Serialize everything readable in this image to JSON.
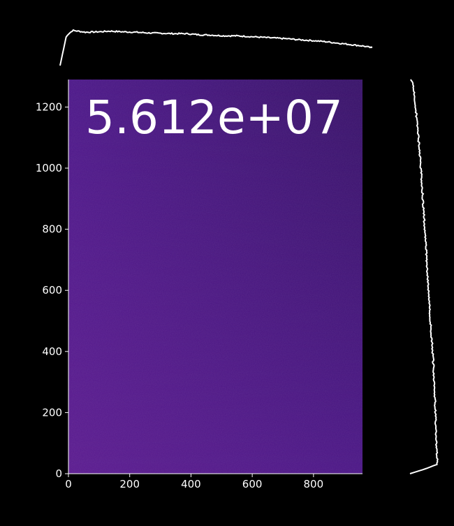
{
  "chart_data": {
    "type": "heatmap",
    "colormap": "plasma",
    "background": "#000000",
    "image": {
      "x_range": [
        0,
        960
      ],
      "y_range": [
        0,
        1290
      ],
      "colors": {
        "bottom_left": "#5a1a8f",
        "bottom_right": "#4a1585",
        "top_left": "#4b1688",
        "top_right": "#361067"
      }
    },
    "annotation": "5.612e+07",
    "x_axis": {
      "ticks": [
        0,
        200,
        400,
        600,
        800
      ],
      "tick_labels": [
        "0",
        "200",
        "400",
        "600",
        "800"
      ]
    },
    "y_axis": {
      "ticks": [
        0,
        200,
        400,
        600,
        800,
        1000,
        1200
      ],
      "tick_labels": [
        "0",
        "200",
        "400",
        "600",
        "800",
        "1000",
        "1200"
      ]
    },
    "column_profile": {
      "x": [
        0,
        20,
        40,
        80,
        120,
        160,
        200,
        240,
        280,
        320,
        360,
        400,
        440,
        480,
        520,
        560,
        600,
        640,
        680,
        720,
        760,
        800,
        840,
        880,
        920,
        960,
        990
      ],
      "values": [
        0.0,
        0.82,
        0.97,
        0.92,
        0.93,
        0.95,
        0.93,
        0.92,
        0.9,
        0.89,
        0.88,
        0.88,
        0.85,
        0.84,
        0.82,
        0.82,
        0.8,
        0.78,
        0.76,
        0.74,
        0.71,
        0.69,
        0.66,
        0.62,
        0.58,
        0.54,
        0.49
      ]
    },
    "row_profile": {
      "y": [
        0,
        5,
        15,
        30,
        100,
        200,
        300,
        400,
        500,
        600,
        700,
        800,
        900,
        1000,
        1100,
        1200,
        1260,
        1280,
        1290
      ],
      "values": [
        0.0,
        0.18,
        0.52,
        0.98,
        0.94,
        0.91,
        0.87,
        0.81,
        0.73,
        0.66,
        0.6,
        0.53,
        0.46,
        0.39,
        0.3,
        0.2,
        0.14,
        0.1,
        0.02
      ]
    }
  }
}
